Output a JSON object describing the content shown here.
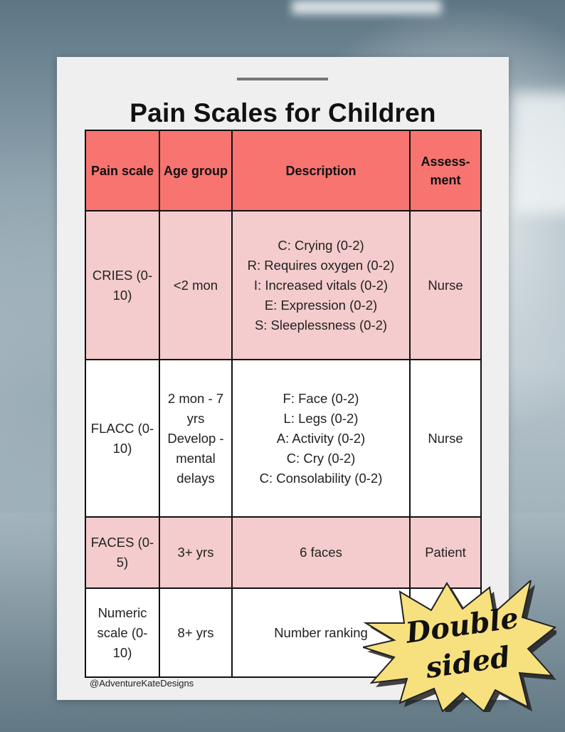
{
  "title": "Pain Scales for Children",
  "credit": "@AdventureKateDesigns",
  "table": {
    "headers": [
      "Pain scale",
      "Age group",
      "Description",
      "Assess-ment"
    ],
    "rows": [
      {
        "scale": "CRIES (0-10)",
        "age": "<2 mon",
        "description": [
          "C: Crying (0-2)",
          "R: Requires oxygen (0-2)",
          "I: Increased vitals (0-2)",
          "E: Expression (0-2)",
          "S: Sleeplessness (0-2)"
        ],
        "assessment": "Nurse"
      },
      {
        "scale": "FLACC (0-10)",
        "age": "2 mon - 7 yrs Develop -mental delays",
        "description": [
          "F: Face (0-2)",
          "L: Legs (0-2)",
          "A: Activity (0-2)",
          "C: Cry (0-2)",
          "C: Consolability (0-2)"
        ],
        "assessment": "Nurse"
      },
      {
        "scale": "FACES (0-5)",
        "age": "3+ yrs",
        "description": [
          "6 faces"
        ],
        "assessment": "Patient"
      },
      {
        "scale": "Numeric scale (0-10)",
        "age": "8+ yrs",
        "description": [
          "Number ranking"
        ],
        "assessment": ""
      }
    ]
  },
  "badge": {
    "line1": "Double",
    "line2": "sided"
  },
  "colors": {
    "header": "#f77470",
    "pink_row": "#f4cccd",
    "badge": "#f7e07e"
  }
}
